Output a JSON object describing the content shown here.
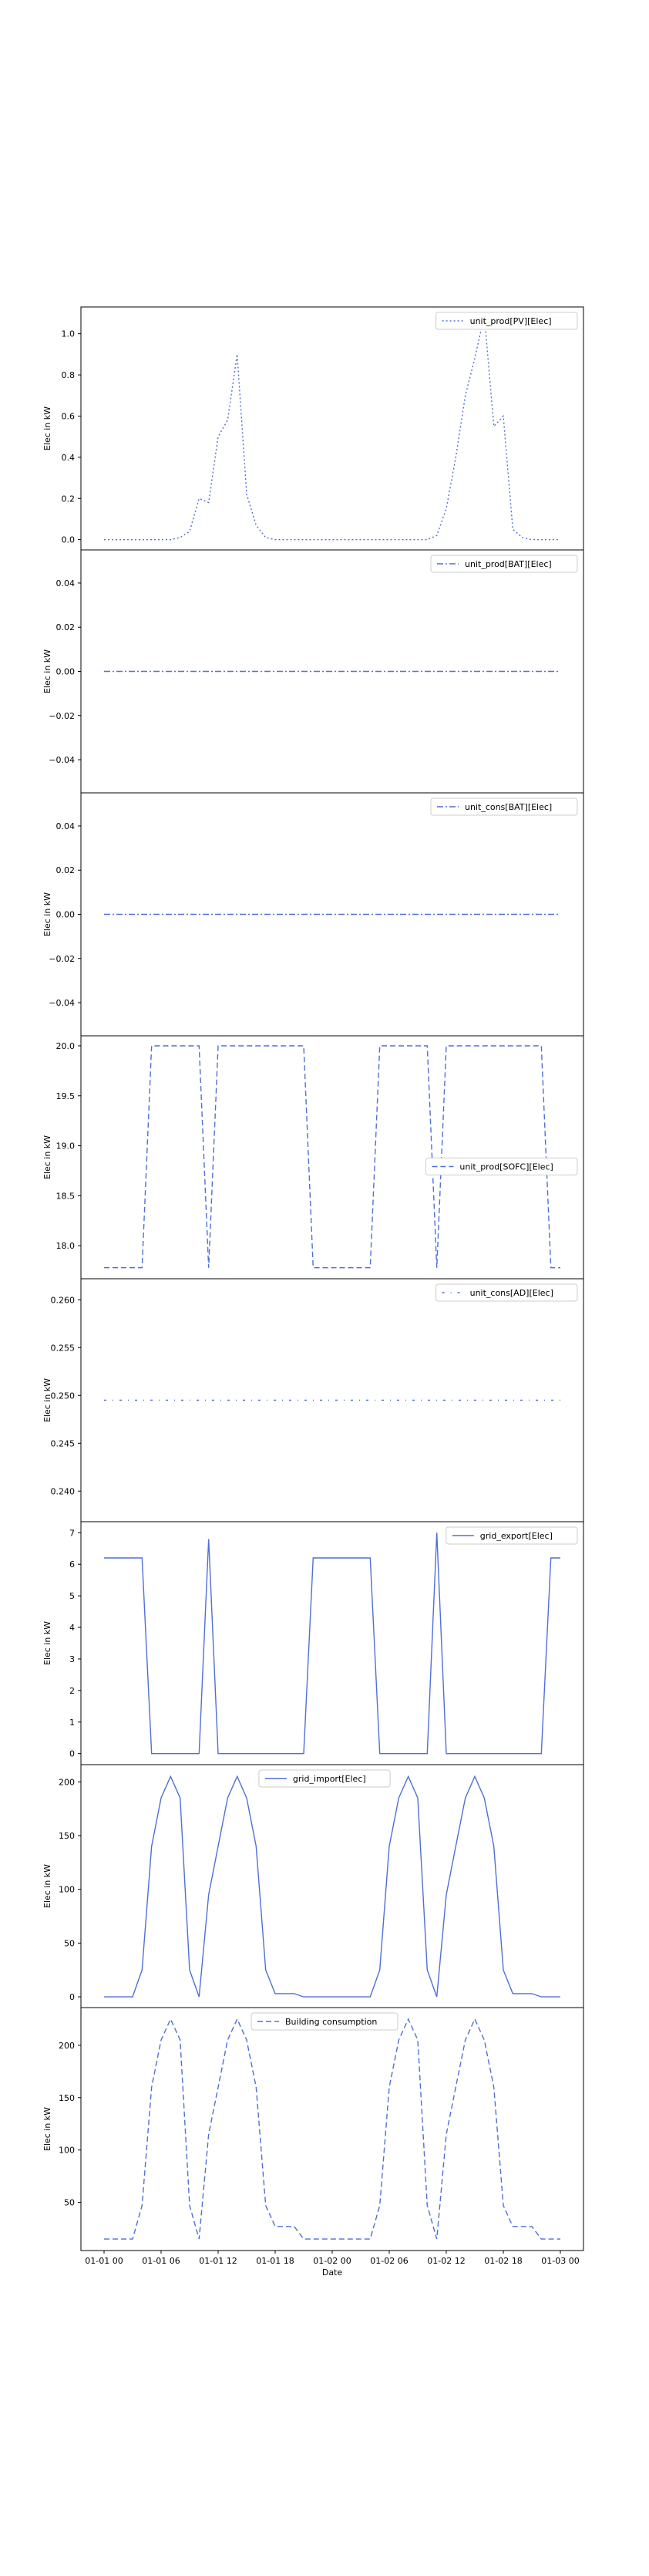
{
  "figure": {
    "xlabel": "Date",
    "x_tick_labels": [
      "01-01 00",
      "01-01 06",
      "01-01 12",
      "01-01 18",
      "01-02 00",
      "01-02 06",
      "01-02 12",
      "01-02 18",
      "01-03 00"
    ]
  },
  "chart_data": [
    {
      "type": "line",
      "ylabel": "Elec in kW",
      "legend": "top-right",
      "ylim": [
        -0.05,
        1.13
      ],
      "yticks": [
        "0.0",
        "0.2",
        "0.4",
        "0.6",
        "0.8",
        "1.0"
      ],
      "series": [
        {
          "name": "unit_prod[PV][Elec]",
          "style": "dotted",
          "color": "#4f6fd8",
          "values": [
            0,
            0,
            0,
            0,
            0,
            0,
            0,
            0,
            0.01,
            0.04,
            0.2,
            0.18,
            0.5,
            0.58,
            0.9,
            0.22,
            0.07,
            0.01,
            0,
            0,
            0,
            0,
            0,
            0,
            0,
            0,
            0,
            0,
            0,
            0,
            0,
            0,
            0,
            0,
            0,
            0.02,
            0.15,
            0.4,
            0.7,
            0.88,
            1.09,
            0.55,
            0.6,
            0.05,
            0.01,
            0,
            0,
            0,
            0
          ]
        }
      ]
    },
    {
      "type": "line",
      "ylabel": "Elec in kW",
      "legend": "top-right",
      "ylim": [
        -0.055,
        0.055
      ],
      "yticks": [
        "−0.04",
        "−0.02",
        "0.00",
        "0.02",
        "0.04"
      ],
      "series": [
        {
          "name": "unit_prod[BAT][Elec]",
          "style": "dashdot",
          "color": "#4f6fd8",
          "values": [
            0,
            0,
            0,
            0,
            0,
            0,
            0,
            0,
            0,
            0,
            0,
            0,
            0,
            0,
            0,
            0,
            0,
            0,
            0,
            0,
            0,
            0,
            0,
            0,
            0,
            0,
            0,
            0,
            0,
            0,
            0,
            0,
            0,
            0,
            0,
            0,
            0,
            0,
            0,
            0,
            0,
            0,
            0,
            0,
            0,
            0,
            0,
            0,
            0
          ]
        }
      ]
    },
    {
      "type": "line",
      "ylabel": "Elec in kW",
      "legend": "top-right",
      "ylim": [
        -0.055,
        0.055
      ],
      "yticks": [
        "−0.04",
        "−0.02",
        "0.00",
        "0.02",
        "0.04"
      ],
      "series": [
        {
          "name": "unit_cons[BAT][Elec]",
          "style": "dashdot",
          "color": "#4f6fd8",
          "values": [
            0,
            0,
            0,
            0,
            0,
            0,
            0,
            0,
            0,
            0,
            0,
            0,
            0,
            0,
            0,
            0,
            0,
            0,
            0,
            0,
            0,
            0,
            0,
            0,
            0,
            0,
            0,
            0,
            0,
            0,
            0,
            0,
            0,
            0,
            0,
            0,
            0,
            0,
            0,
            0,
            0,
            0,
            0,
            0,
            0,
            0,
            0,
            0,
            0
          ]
        }
      ]
    },
    {
      "type": "line",
      "ylabel": "Elec in kW",
      "legend": "center-right",
      "ylim": [
        17.67,
        20.1
      ],
      "yticks": [
        "18.0",
        "18.5",
        "19.0",
        "19.5",
        "20.0"
      ],
      "series": [
        {
          "name": "unit_prod[SOFC][Elec]",
          "style": "dashed",
          "color": "#4f6fd8",
          "values": [
            17.78,
            17.78,
            17.78,
            17.78,
            17.78,
            20,
            20,
            20,
            20,
            20,
            20,
            17.78,
            20,
            20,
            20,
            20,
            20,
            20,
            20,
            20,
            20,
            20,
            17.78,
            17.78,
            17.78,
            17.78,
            17.78,
            17.78,
            17.78,
            20,
            20,
            20,
            20,
            20,
            20,
            17.78,
            20,
            20,
            20,
            20,
            20,
            20,
            20,
            20,
            20,
            20,
            20,
            17.78,
            17.78
          ]
        }
      ]
    },
    {
      "type": "line",
      "ylabel": "Elec in kW",
      "legend": "top-right",
      "ylim": [
        0.2368,
        0.2622
      ],
      "yticks": [
        "0.240",
        "0.245",
        "0.250",
        "0.255",
        "0.260"
      ],
      "series": [
        {
          "name": "unit_cons[AD][Elec]",
          "style": "loosedashdot",
          "color": "#4f6fd8",
          "values": [
            0.2495,
            0.2495,
            0.2495,
            0.2495,
            0.2495,
            0.2495,
            0.2495,
            0.2495,
            0.2495,
            0.2495,
            0.2495,
            0.2495,
            0.2495,
            0.2495,
            0.2495,
            0.2495,
            0.2495,
            0.2495,
            0.2495,
            0.2495,
            0.2495,
            0.2495,
            0.2495,
            0.2495,
            0.2495,
            0.2495,
            0.2495,
            0.2495,
            0.2495,
            0.2495,
            0.2495,
            0.2495,
            0.2495,
            0.2495,
            0.2495,
            0.2495,
            0.2495,
            0.2495,
            0.2495,
            0.2495,
            0.2495,
            0.2495,
            0.2495,
            0.2495,
            0.2495,
            0.2495,
            0.2495,
            0.2495,
            0.2495
          ]
        }
      ]
    },
    {
      "type": "line",
      "ylabel": "Elec in kW",
      "legend": "top-right",
      "ylim": [
        -0.35,
        7.35
      ],
      "yticks": [
        "0",
        "1",
        "2",
        "3",
        "4",
        "5",
        "6",
        "7"
      ],
      "series": [
        {
          "name": "grid_export[Elec]",
          "style": "solid",
          "color": "#4f6fd8",
          "values": [
            6.2,
            6.2,
            6.2,
            6.2,
            6.2,
            0,
            0,
            0,
            0,
            0,
            0,
            6.8,
            0,
            0,
            0,
            0,
            0,
            0,
            0,
            0,
            0,
            0,
            6.2,
            6.2,
            6.2,
            6.2,
            6.2,
            6.2,
            6.2,
            0,
            0,
            0,
            0,
            0,
            0,
            7,
            0,
            0,
            0,
            0,
            0,
            0,
            0,
            0,
            0,
            0,
            0,
            6.2,
            6.2
          ]
        }
      ]
    },
    {
      "type": "line",
      "ylabel": "Elec in kW",
      "legend": "top-center",
      "ylim": [
        -10,
        216
      ],
      "yticks": [
        "0",
        "50",
        "100",
        "150",
        "200"
      ],
      "series": [
        {
          "name": "grid_import[Elec]",
          "style": "solid",
          "color": "#4f6fd8",
          "values": [
            0,
            0,
            0,
            0,
            25,
            140,
            185,
            205,
            185,
            25,
            0,
            95,
            140,
            185,
            205,
            185,
            140,
            25,
            3,
            3,
            3,
            0,
            0,
            0,
            0,
            0,
            0,
            0,
            0,
            25,
            140,
            185,
            205,
            185,
            25,
            0,
            95,
            140,
            185,
            205,
            185,
            140,
            25,
            3,
            3,
            3,
            0,
            0,
            0
          ]
        }
      ]
    },
    {
      "type": "line",
      "ylabel": "Elec in kW",
      "legend": "top-center",
      "ylim": [
        4,
        236
      ],
      "yticks": [
        "50",
        "100",
        "150",
        "200"
      ],
      "series": [
        {
          "name": "Building consumption",
          "style": "dashed",
          "color": "#4f6fd8",
          "values": [
            15,
            15,
            15,
            15,
            47,
            160,
            205,
            225,
            205,
            47,
            15,
            115,
            160,
            205,
            225,
            205,
            160,
            47,
            27,
            27,
            27,
            15,
            15,
            15,
            15,
            15,
            15,
            15,
            15,
            47,
            160,
            205,
            225,
            205,
            47,
            15,
            115,
            160,
            205,
            225,
            205,
            160,
            47,
            27,
            27,
            27,
            15,
            15,
            15
          ]
        }
      ]
    }
  ]
}
